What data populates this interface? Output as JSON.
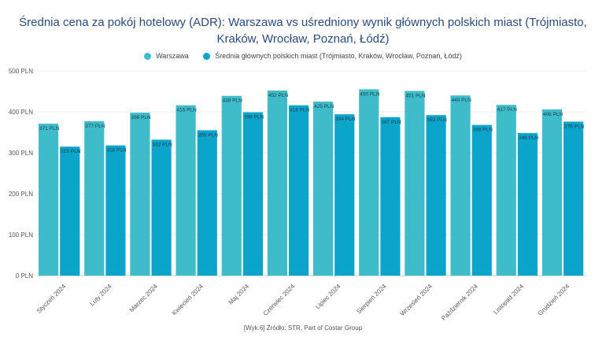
{
  "chart_data": {
    "type": "bar",
    "title": "Średnia cena za pokój hotelowy (ADR): Warszawa vs uśredniony wynik głównych polskich miast (Trójmiasto, Kraków, Wrocław, Poznań, Łódź)",
    "categories": [
      "Styczeń 2024",
      "Luty 2024",
      "Marzec 2024",
      "Kwiecień 2024",
      "Maj 2024",
      "Czerwiec 2024",
      "Lipiec 2024",
      "Sierpień 2024",
      "Wrzesień 2024",
      "Październik 2024",
      "Listopad 2024",
      "Grudzień 2024"
    ],
    "series": [
      {
        "name": "Warszawa",
        "color": "#3fbcca",
        "values": [
          371,
          377,
          398,
          416,
          439,
          452,
          425,
          455,
          451,
          440,
          417,
          406
        ]
      },
      {
        "name": "Średnia głównych polskich miast (Trójmiasto, Kraków, Wrocław, Poznań, Łódź)",
        "color": "#0ba5cc",
        "values": [
          315,
          318,
          332,
          355,
          399,
          416,
          394,
          387,
          392,
          368,
          348,
          376
        ]
      }
    ],
    "value_suffix": " PLN",
    "ylim": [
      0,
      500
    ],
    "yticks": [
      "0 PLN",
      "100 PLN",
      "200 PLN",
      "300 PLN",
      "400 PLN",
      "500 PLN"
    ],
    "grid": true,
    "legend": "top-center"
  },
  "source": "[Wyk.6] Źródło: STR, Part of Costar Group"
}
